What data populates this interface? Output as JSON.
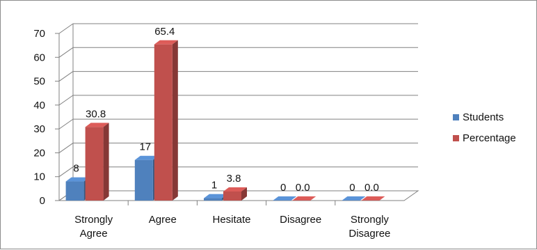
{
  "chart_data": {
    "type": "bar",
    "categories": [
      [
        "Strongly",
        "Agree"
      ],
      [
        "Agree"
      ],
      [
        "Hesitate"
      ],
      [
        "Disagree"
      ],
      [
        "Strongly",
        "Disagree"
      ]
    ],
    "series": [
      {
        "name": "Students",
        "values": [
          8,
          17,
          1,
          0,
          0
        ],
        "labels": [
          "8",
          "17",
          "1",
          "0",
          "0"
        ],
        "color": "#4f81bd"
      },
      {
        "name": "Percentage",
        "values": [
          30.8,
          65.4,
          3.8,
          0,
          0
        ],
        "labels": [
          "30.8",
          "65.4",
          "3.8",
          "0.0",
          "0.0"
        ],
        "color": "#c0504d"
      }
    ],
    "ylim": [
      0,
      70
    ],
    "yticks": [
      0,
      10,
      20,
      30,
      40,
      50,
      60,
      70
    ],
    "grid": true,
    "legend_position": "right",
    "style": "3d-clustered-column"
  }
}
